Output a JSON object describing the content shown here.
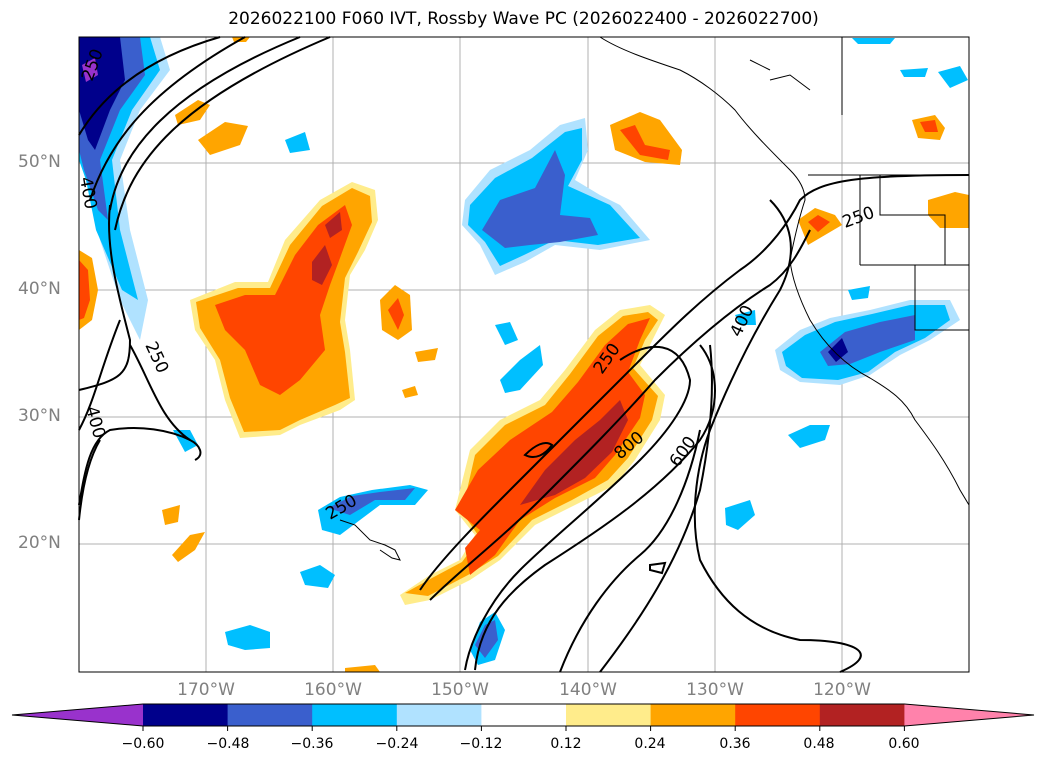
{
  "title": "2026022100 F060 IVT, Rossby Wave PC (2026022400 - 2026022700)",
  "lat_labels": [
    "50°N",
    "40°N",
    "30°N",
    "20°N"
  ],
  "lon_labels": [
    "170°W",
    "160°W",
    "150°W",
    "140°W",
    "130°W",
    "120°W"
  ],
  "contour_labels": [
    "250",
    "400",
    "250",
    "400",
    "250",
    "250",
    "800",
    "600",
    "400",
    "250"
  ],
  "colorbar": {
    "ticks": [
      "−0.60",
      "−0.48",
      "−0.36",
      "−0.24",
      "−0.12",
      "0.12",
      "0.24",
      "0.36",
      "0.48",
      "0.60"
    ],
    "colors": [
      "#9932cc",
      "#00008b",
      "#3a5fcd",
      "#00bfff",
      "#b0e2ff",
      "#ffffff",
      "#ffec8b",
      "#ffa500",
      "#ff4500",
      "#b22222",
      "#ff82ab"
    ]
  },
  "map": {
    "lon_range": [
      -180,
      -110
    ],
    "lat_range": [
      10,
      60
    ]
  }
}
